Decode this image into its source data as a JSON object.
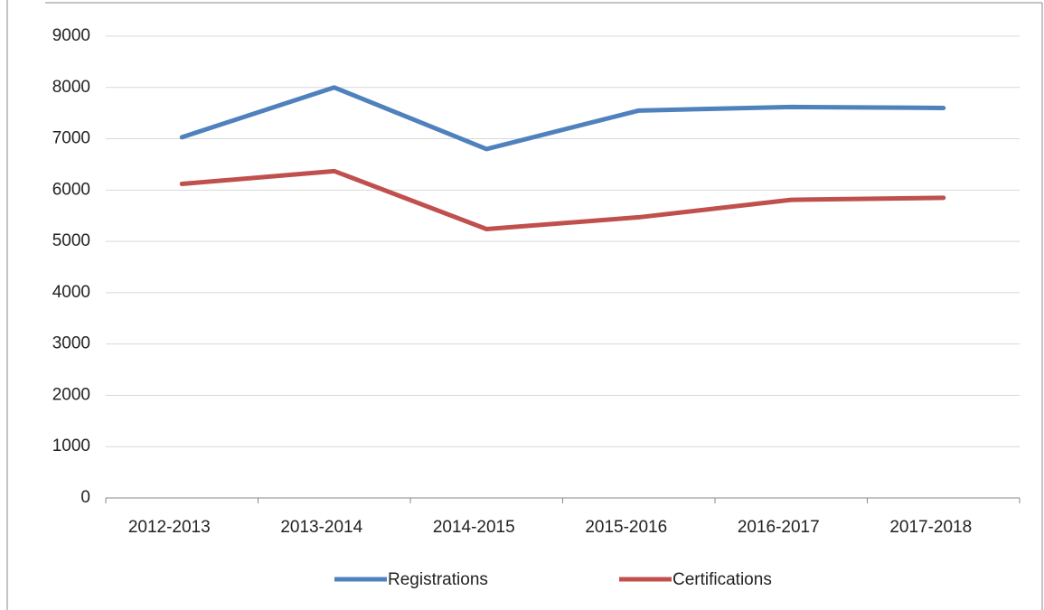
{
  "chart_data": {
    "type": "line",
    "categories": [
      "2012-2013",
      "2013-2014",
      "2014-2015",
      "2015-2016",
      "2016-2017",
      "2017-2018"
    ],
    "series": [
      {
        "name": "Registrations",
        "color": "#4f81bd",
        "values": [
          7030,
          8000,
          6800,
          7550,
          7620,
          7600
        ]
      },
      {
        "name": "Certifications",
        "color": "#c0504d",
        "values": [
          6120,
          6370,
          5240,
          5470,
          5810,
          5850
        ]
      }
    ],
    "ylim": [
      0,
      9000
    ],
    "yticks": [
      0,
      1000,
      2000,
      3000,
      4000,
      5000,
      6000,
      7000,
      8000,
      9000
    ],
    "grid": true,
    "legend": "bottom"
  }
}
